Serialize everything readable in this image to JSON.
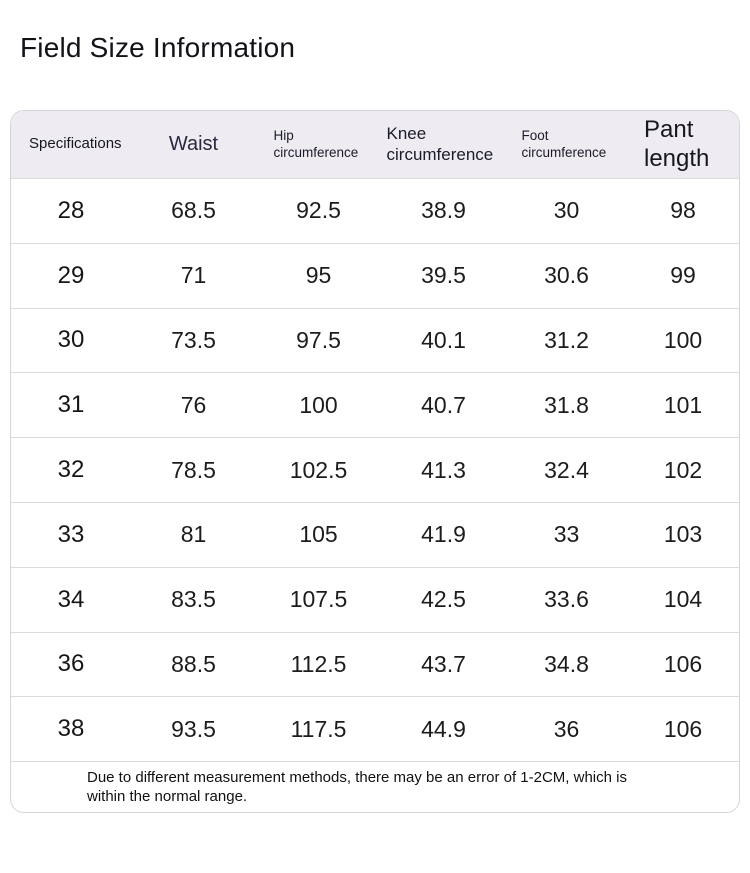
{
  "page": {
    "title": "Field Size Information"
  },
  "table": {
    "columns": [
      {
        "key": "spec",
        "label": "Specifications"
      },
      {
        "key": "waist",
        "label": "Waist"
      },
      {
        "key": "hip",
        "label": "Hip circumference"
      },
      {
        "key": "knee",
        "label": "Knee circumference"
      },
      {
        "key": "foot",
        "label": "Foot circumference"
      },
      {
        "key": "pant",
        "label": "Pant length"
      }
    ],
    "rows": [
      [
        "28",
        "68.5",
        "92.5",
        "38.9",
        "30",
        "98"
      ],
      [
        "29",
        "71",
        "95",
        "39.5",
        "30.6",
        "99"
      ],
      [
        "30",
        "73.5",
        "97.5",
        "40.1",
        "31.2",
        "100"
      ],
      [
        "31",
        "76",
        "100",
        "40.7",
        "31.8",
        "101"
      ],
      [
        "32",
        "78.5",
        "102.5",
        "41.3",
        "32.4",
        "102"
      ],
      [
        "33",
        "81",
        "105",
        "41.9",
        "33",
        "103"
      ],
      [
        "34",
        "83.5",
        "107.5",
        "42.5",
        "33.6",
        "104"
      ],
      [
        "36",
        "88.5",
        "112.5",
        "43.7",
        "34.8",
        "106"
      ],
      [
        "38",
        "93.5",
        "117.5",
        "44.9",
        "36",
        "106"
      ]
    ],
    "note": "Due to different measurement methods, there may be an error of 1-2CM, which is within the normal range."
  },
  "colors": {
    "header_bg": "#eeecf1",
    "card_border": "#d6d4da",
    "row_divider": "#dadada",
    "body_text": "#1c1c1c",
    "header_text": "#2b2740"
  },
  "chart_data": {
    "type": "table",
    "title": "Field Size Information",
    "columns": [
      "Specifications",
      "Waist",
      "Hip circumference",
      "Knee circumference",
      "Foot circumference",
      "Pant length"
    ],
    "rows": [
      [
        28,
        68.5,
        92.5,
        38.9,
        30,
        98
      ],
      [
        29,
        71,
        95,
        39.5,
        30.6,
        99
      ],
      [
        30,
        73.5,
        97.5,
        40.1,
        31.2,
        100
      ],
      [
        31,
        76,
        100,
        40.7,
        31.8,
        101
      ],
      [
        32,
        78.5,
        102.5,
        41.3,
        32.4,
        102
      ],
      [
        33,
        81,
        105,
        41.9,
        33,
        103
      ],
      [
        34,
        83.5,
        107.5,
        42.5,
        33.6,
        104
      ],
      [
        36,
        88.5,
        112.5,
        43.7,
        34.8,
        106
      ],
      [
        38,
        93.5,
        117.5,
        44.9,
        36,
        106
      ]
    ],
    "footnote": "Due to different measurement methods, there may be an error of 1-2CM, which is within the normal range.",
    "units": "CM"
  }
}
